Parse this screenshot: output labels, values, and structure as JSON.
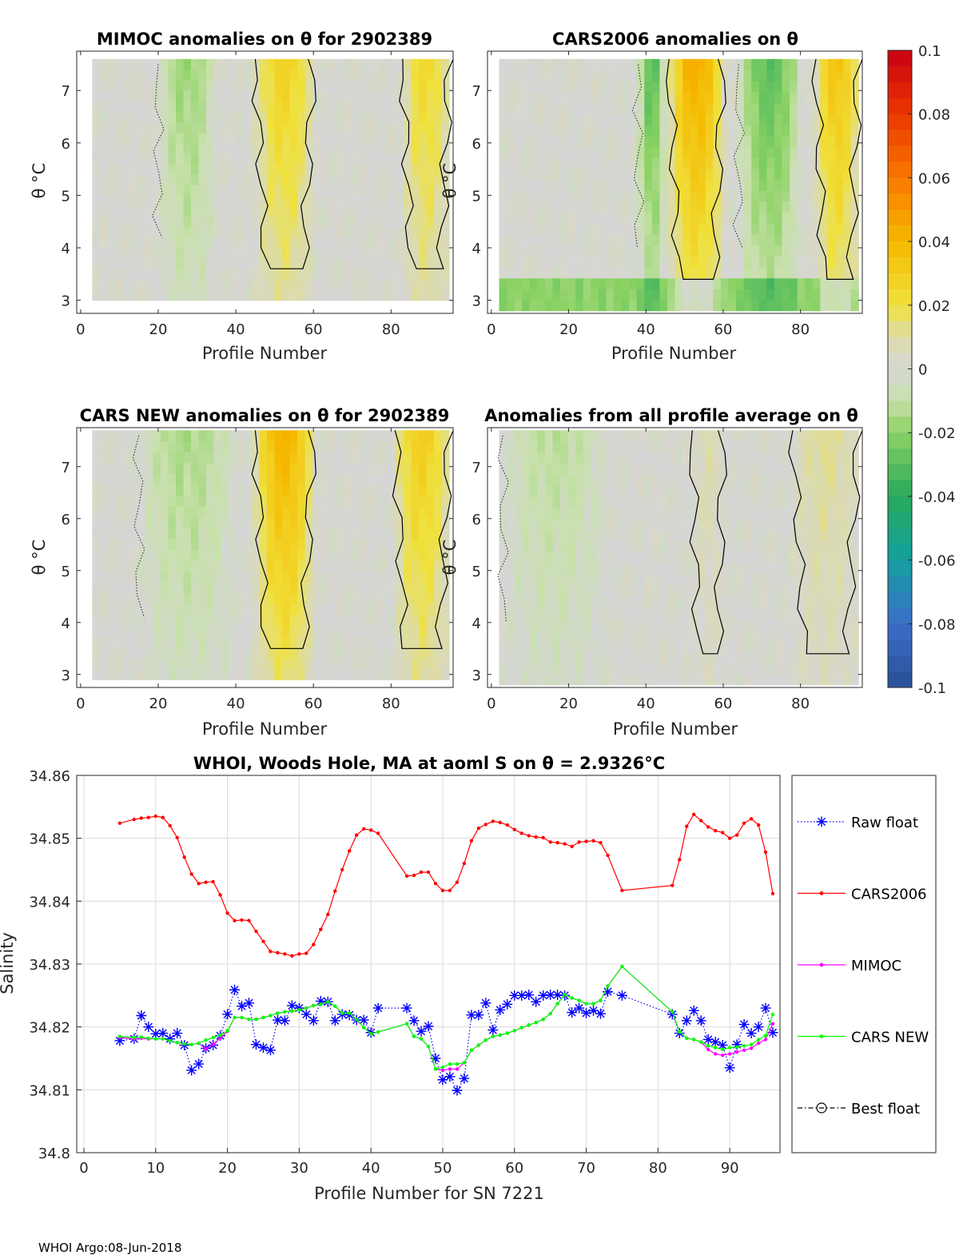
{
  "footer": "WHOI Argo:08-Jun-2018",
  "colorbar": {
    "min": -0.1,
    "max": 0.1,
    "ticks": [
      0.1,
      0.08,
      0.06,
      0.04,
      0.02,
      0,
      -0.02,
      -0.04,
      -0.06,
      -0.08,
      -0.1
    ],
    "tick_labels": [
      "0.1",
      "0.08",
      "0.06",
      "0.04",
      "0.02",
      "0",
      "-0.02",
      "-0.04",
      "-0.06",
      "-0.08",
      "-0.1"
    ]
  },
  "chart_data": [
    {
      "type": "heatmap",
      "title": "MIMOC anomalies on θ  for 2902389",
      "xlabel": "Profile Number",
      "ylabel": "θ °C",
      "xlim": [
        -1,
        96
      ],
      "ylim": [
        2.75,
        7.75
      ],
      "xticks": [
        0,
        20,
        40,
        60,
        80
      ],
      "yticks": [
        3,
        4,
        5,
        6,
        7
      ],
      "warm_bands": [
        [
          45,
          60,
          0.028
        ],
        [
          83,
          95,
          0.025
        ]
      ],
      "cool_bands": [
        [
          20,
          35,
          -0.018
        ]
      ],
      "coverage": {
        "x_start": 3,
        "x_end": 95,
        "theta_bottom": 3.0,
        "theta_top": 7.6
      }
    },
    {
      "type": "heatmap",
      "title": "CARS2006 anomalies on θ",
      "xlabel": "Profile Number",
      "ylabel": "θ °C",
      "xlim": [
        -1,
        96
      ],
      "ylim": [
        2.75,
        7.75
      ],
      "xticks": [
        0,
        20,
        40,
        60,
        80
      ],
      "yticks": [
        3,
        4,
        5,
        6,
        7
      ],
      "warm_bands": [
        [
          46,
          60,
          0.045
        ],
        [
          84,
          95,
          0.035
        ]
      ],
      "cool_bands": [
        [
          38,
          45,
          -0.03
        ],
        [
          64,
          80,
          -0.03
        ]
      ],
      "coverage": {
        "x_start": 2,
        "x_end": 95,
        "theta_bottom": 2.8,
        "theta_top": 7.6
      }
    },
    {
      "type": "heatmap",
      "title": "CARS NEW anomalies on θ for 2902389",
      "xlabel": "Profile Number",
      "ylabel": "θ °C",
      "xlim": [
        -1,
        96
      ],
      "ylim": [
        2.75,
        7.75
      ],
      "xticks": [
        0,
        20,
        40,
        60,
        80
      ],
      "yticks": [
        3,
        4,
        5,
        6,
        7
      ],
      "warm_bands": [
        [
          45,
          60,
          0.042
        ],
        [
          81,
          95,
          0.03
        ]
      ],
      "cool_bands": [
        [
          15,
          40,
          -0.015
        ]
      ],
      "coverage": {
        "x_start": 3,
        "x_end": 95,
        "theta_bottom": 2.9,
        "theta_top": 7.7
      }
    },
    {
      "type": "heatmap",
      "title": "Anomalies from all profile average on θ",
      "xlabel": "Profile Number",
      "ylabel": "θ °C",
      "xlim": [
        -1,
        96
      ],
      "ylim": [
        2.75,
        7.75
      ],
      "xticks": [
        0,
        20,
        40,
        60,
        80
      ],
      "yticks": [
        3,
        4,
        5,
        6,
        7
      ],
      "warm_bands": [
        [
          78,
          95,
          0.012
        ],
        [
          52,
          60,
          0.008
        ]
      ],
      "cool_bands": [
        [
          3,
          30,
          -0.012
        ]
      ],
      "coverage": {
        "x_start": 2,
        "x_end": 95,
        "theta_bottom": 2.8,
        "theta_top": 7.7
      }
    },
    {
      "type": "line",
      "title": "WHOI, Woods Hole, MA at aoml S on θ = 2.9326°C",
      "xlabel": "Profile Number for SN 7221",
      "ylabel": "Salinity",
      "xlim": [
        -1,
        97
      ],
      "ylim": [
        34.8,
        34.86
      ],
      "xticks": [
        0,
        10,
        20,
        30,
        40,
        50,
        60,
        70,
        80,
        90
      ],
      "yticks": [
        34.8,
        34.81,
        34.82,
        34.83,
        34.84,
        34.85,
        34.86
      ],
      "ytick_labels": [
        "34.8",
        "34.81",
        "34.82",
        "34.83",
        "34.84",
        "34.85",
        "34.86"
      ],
      "legend_position": "outside-right",
      "series": [
        {
          "name": "Raw float",
          "color": "#0000ff",
          "style": "dotted-star",
          "x": [
            5,
            7,
            8,
            9,
            10,
            11,
            12,
            13,
            14,
            15,
            16,
            17,
            18,
            19,
            20,
            21,
            22,
            23,
            24,
            25,
            26,
            27,
            28,
            29,
            30,
            31,
            32,
            33,
            34,
            35,
            36,
            37,
            38,
            39,
            40,
            41,
            45,
            46,
            47,
            48,
            49,
            50,
            51,
            52,
            53,
            54,
            55,
            56,
            57,
            58,
            59,
            60,
            61,
            62,
            63,
            64,
            65,
            66,
            67,
            68,
            69,
            70,
            71,
            72,
            73,
            75,
            82,
            83,
            84,
            85,
            86,
            87,
            88,
            89,
            90,
            91,
            92,
            93,
            94,
            95,
            96
          ],
          "y": [
            34.8178,
            34.8181,
            34.8218,
            34.82,
            34.8189,
            34.819,
            34.8181,
            34.819,
            34.8171,
            34.8131,
            34.8141,
            34.8166,
            34.8171,
            34.8186,
            34.822,
            34.8259,
            34.8233,
            34.8238,
            34.8172,
            34.8167,
            34.8163,
            34.8211,
            34.821,
            34.8234,
            34.823,
            34.822,
            34.821,
            34.8241,
            34.824,
            34.821,
            34.822,
            34.8219,
            34.8211,
            34.8211,
            34.8191,
            34.823,
            34.823,
            34.821,
            34.8193,
            34.8201,
            34.815,
            34.8116,
            34.8121,
            34.8099,
            34.8118,
            34.8219,
            34.8219,
            34.8238,
            34.8195,
            34.8227,
            34.8236,
            34.825,
            34.825,
            34.8251,
            34.824,
            34.825,
            34.8251,
            34.8251,
            34.825,
            34.8223,
            34.823,
            34.8222,
            34.8226,
            34.8221,
            34.8256,
            34.825,
            34.822,
            34.819,
            34.821,
            34.8226,
            34.821,
            34.818,
            34.8176,
            34.8171,
            34.8135,
            34.8172,
            34.8204,
            34.819,
            34.82,
            34.823,
            34.8191
          ]
        },
        {
          "name": "CARS2006",
          "color": "#ff0000",
          "style": "solid-dot",
          "x": [
            5,
            7,
            8,
            9,
            10,
            11,
            12,
            13,
            14,
            15,
            16,
            17,
            18,
            19,
            20,
            21,
            22,
            23,
            24,
            25,
            26,
            27,
            28,
            29,
            30,
            31,
            32,
            33,
            34,
            35,
            36,
            37,
            38,
            39,
            40,
            41,
            45,
            46,
            47,
            48,
            49,
            50,
            51,
            52,
            53,
            54,
            55,
            56,
            57,
            58,
            59,
            60,
            61,
            62,
            63,
            64,
            65,
            66,
            67,
            68,
            69,
            70,
            71,
            72,
            73,
            75,
            82,
            83,
            84,
            85,
            86,
            87,
            88,
            89,
            90,
            91,
            92,
            93,
            94,
            95,
            96
          ],
          "y": [
            34.8524,
            34.853,
            34.8532,
            34.8533,
            34.8535,
            34.8533,
            34.852,
            34.8501,
            34.847,
            34.8443,
            34.8428,
            34.843,
            34.8431,
            34.841,
            34.8381,
            34.8369,
            34.837,
            34.8369,
            34.8352,
            34.8336,
            34.832,
            34.8318,
            34.8316,
            34.8313,
            34.8316,
            34.8317,
            34.8331,
            34.8355,
            34.8379,
            34.8416,
            34.845,
            34.848,
            34.8505,
            34.8515,
            34.8513,
            34.8508,
            34.844,
            34.8441,
            34.8446,
            34.8446,
            34.8428,
            34.8417,
            34.8417,
            34.843,
            34.846,
            34.8496,
            34.8516,
            34.8522,
            34.8527,
            34.8525,
            34.8521,
            34.8514,
            34.8508,
            34.8504,
            34.8502,
            34.8501,
            34.8494,
            34.8493,
            34.8491,
            34.8487,
            34.8494,
            34.8495,
            34.8496,
            34.8493,
            34.8473,
            34.8417,
            34.8425,
            34.8466,
            34.8519,
            34.8538,
            34.8528,
            34.8518,
            34.8512,
            34.8509,
            34.85,
            34.8505,
            34.8524,
            34.8531,
            34.8521,
            34.8478,
            34.8412
          ]
        },
        {
          "name": "MIMOC",
          "color": "#ff00ff",
          "style": "solid-dot",
          "x": [
            5,
            7,
            8,
            9,
            10,
            11,
            12,
            13,
            14,
            15,
            16,
            17,
            18,
            19,
            20,
            21,
            22,
            23,
            24,
            25,
            26,
            27,
            28,
            29,
            30,
            31,
            32,
            33,
            34,
            35,
            36,
            37,
            38,
            39,
            40,
            41,
            45,
            46,
            47,
            48,
            49,
            50,
            51,
            52,
            53,
            54,
            55,
            56,
            57,
            58,
            59,
            60,
            61,
            62,
            63,
            64,
            65,
            66,
            67,
            68,
            69,
            70,
            71,
            72,
            73,
            75,
            82,
            83,
            84,
            85,
            86,
            87,
            88,
            89,
            90,
            91,
            92,
            93,
            94,
            95,
            96
          ],
          "y": [
            34.8183,
            34.8181,
            34.8182,
            34.8181,
            34.8181,
            34.8181,
            34.8178,
            34.8175,
            34.8173,
            34.8172,
            34.8174,
            34.8165,
            34.8172,
            34.8182,
            34.8193,
            34.8215,
            34.8215,
            34.8212,
            34.8212,
            34.8215,
            34.8218,
            34.8222,
            34.8224,
            34.8225,
            34.8227,
            34.823,
            34.8234,
            34.8236,
            34.824,
            34.8233,
            34.8222,
            34.8222,
            34.8212,
            34.8199,
            34.8189,
            34.8192,
            34.8205,
            34.8185,
            34.8181,
            34.8169,
            34.8133,
            34.8131,
            34.8133,
            34.8133,
            34.8143,
            34.8163,
            34.8171,
            34.8179,
            34.8185,
            34.8187,
            34.819,
            34.8194,
            34.8199,
            34.8203,
            34.8207,
            34.8212,
            34.8221,
            34.8237,
            34.8251,
            34.8246,
            34.8242,
            34.8237,
            34.8237,
            34.8242,
            34.8265,
            34.8296,
            34.8224,
            34.8192,
            34.8182,
            34.818,
            34.8176,
            34.8164,
            34.8157,
            34.8155,
            34.8157,
            34.816,
            34.8163,
            34.8166,
            34.8174,
            34.818,
            34.8205
          ]
        },
        {
          "name": "CARS NEW",
          "color": "#00ff00",
          "style": "solid-dot",
          "x": [
            5,
            7,
            8,
            9,
            10,
            11,
            12,
            13,
            14,
            15,
            16,
            17,
            18,
            19,
            20,
            21,
            22,
            23,
            24,
            25,
            26,
            27,
            28,
            29,
            30,
            31,
            32,
            33,
            34,
            35,
            36,
            37,
            38,
            39,
            40,
            41,
            45,
            46,
            47,
            48,
            49,
            50,
            51,
            52,
            53,
            54,
            55,
            56,
            57,
            58,
            59,
            60,
            61,
            62,
            63,
            64,
            65,
            66,
            67,
            68,
            69,
            70,
            71,
            72,
            73,
            75,
            82,
            83,
            84,
            85,
            86,
            87,
            88,
            89,
            90,
            91,
            92,
            93,
            94,
            95,
            96
          ],
          "y": [
            34.8185,
            34.8183,
            34.8184,
            34.8182,
            34.8181,
            34.8181,
            34.8178,
            34.8175,
            34.8173,
            34.8172,
            34.8174,
            34.8179,
            34.8183,
            34.8187,
            34.8194,
            34.8215,
            34.8215,
            34.8212,
            34.8212,
            34.8215,
            34.8218,
            34.8222,
            34.8224,
            34.8225,
            34.8227,
            34.823,
            34.8234,
            34.8236,
            34.824,
            34.8233,
            34.8222,
            34.8222,
            34.8212,
            34.8199,
            34.8189,
            34.8192,
            34.8205,
            34.8185,
            34.8181,
            34.8169,
            34.8133,
            34.8136,
            34.8141,
            34.8141,
            34.8143,
            34.8163,
            34.8171,
            34.8179,
            34.8185,
            34.8187,
            34.819,
            34.8194,
            34.8199,
            34.8203,
            34.8207,
            34.8212,
            34.8221,
            34.8237,
            34.8251,
            34.8246,
            34.8242,
            34.8237,
            34.8237,
            34.8242,
            34.8265,
            34.8296,
            34.8224,
            34.8192,
            34.8182,
            34.818,
            34.8176,
            34.817,
            34.8167,
            34.8164,
            34.8167,
            34.8168,
            34.817,
            34.8172,
            34.818,
            34.8186,
            34.822
          ]
        },
        {
          "name": "Best float",
          "color": "#000000",
          "style": "dashdot-circle",
          "x": [],
          "y": []
        }
      ]
    }
  ]
}
